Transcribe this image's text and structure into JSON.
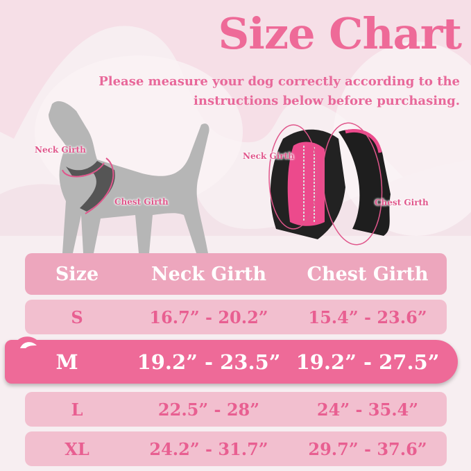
{
  "header": {
    "title": "Size Chart",
    "subtitle": "Please measure your dog correctly according to the instructions below before purchasing."
  },
  "illustrations": {
    "dog": {
      "neck_label": "Neck Girth",
      "chest_label": "Chest Girth"
    },
    "harness": {
      "neck_label": "Neck Girth",
      "chest_label": "Chest Girth"
    }
  },
  "table": {
    "columns": [
      "Size",
      "Neck Girth",
      "Chest Girth"
    ],
    "rows": [
      {
        "size": "S",
        "neck": "16.7” - 20.2”",
        "chest": "15.4” - 23.6”"
      },
      {
        "size": "M",
        "neck": "19.2” - 23.5”",
        "chest": "19.2” - 27.5”",
        "highlighted": true
      },
      {
        "size": "L",
        "neck": "22.5” - 28”",
        "chest": "24” - 35.4”"
      },
      {
        "size": "XL",
        "neck": "24.2” - 31.7”",
        "chest": "29.7” - 37.6”"
      }
    ]
  },
  "colors": {
    "accent": "#ee6a98",
    "header_row": "#eda6bd",
    "row": "#f2bfcf",
    "background": "#f7eef1"
  }
}
